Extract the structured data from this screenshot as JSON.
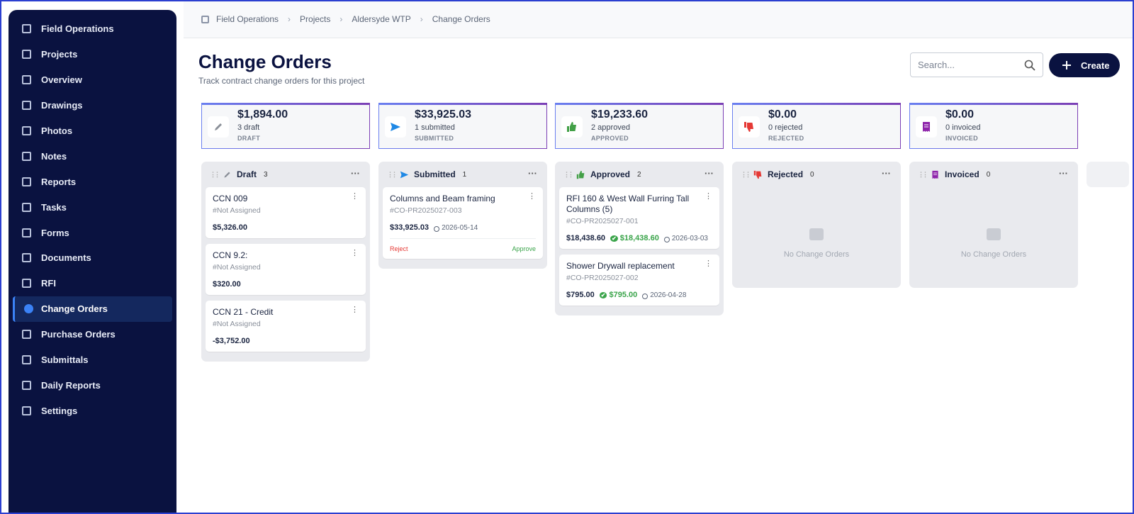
{
  "sidebar": {
    "items": [
      {
        "label": "Field Operations"
      },
      {
        "label": "Projects"
      },
      {
        "label": "Overview"
      },
      {
        "label": "Drawings"
      },
      {
        "label": "Photos"
      },
      {
        "label": "Notes"
      },
      {
        "label": "Reports"
      },
      {
        "label": "Tasks"
      },
      {
        "label": "Forms"
      },
      {
        "label": "Documents"
      },
      {
        "label": "RFI"
      },
      {
        "label": "Change Orders",
        "active": true
      },
      {
        "label": "Purchase Orders"
      },
      {
        "label": "Submittals"
      },
      {
        "label": "Daily Reports"
      },
      {
        "label": "Settings"
      }
    ]
  },
  "breadcrumb": [
    "Field Operations",
    "Projects",
    "Aldersyde WTP",
    "Change Orders"
  ],
  "header": {
    "title": "Change Orders",
    "subtitle": "Track contract change orders for this project",
    "search_placeholder": "Search...",
    "create_label": "Create"
  },
  "summary": [
    {
      "amount": "$1,894.00",
      "count": "3 draft",
      "label": "DRAFT"
    },
    {
      "amount": "$33,925.03",
      "count": "1 submitted",
      "label": "SUBMITTED"
    },
    {
      "amount": "$19,233.60",
      "count": "2 approved",
      "label": "APPROVED"
    },
    {
      "amount": "$0.00",
      "count": "0 rejected",
      "label": "REJECTED"
    },
    {
      "amount": "$0.00",
      "count": "0 invoiced",
      "label": "INVOICED"
    }
  ],
  "board": {
    "columns": [
      {
        "title": "Draft",
        "count": "3",
        "cards": [
          {
            "title": "CCN 009",
            "ref": "#Not Assigned",
            "amount": "$5,326.00"
          },
          {
            "title": "CCN 9.2:",
            "ref": "#Not Assigned",
            "amount": "$320.00"
          },
          {
            "title": "CCN 21 - Credit",
            "ref": "#Not Assigned",
            "amount": "-$3,752.00"
          }
        ]
      },
      {
        "title": "Submitted",
        "count": "1",
        "cards": [
          {
            "title": "Columns and Beam framing",
            "ref": "#CO-PR2025027-003",
            "amount": "$33,925.03",
            "date": "2026-05-14",
            "actions": [
              "Reject",
              "Approve"
            ]
          }
        ]
      },
      {
        "title": "Approved",
        "count": "2",
        "cards": [
          {
            "title": "RFI 160 & West Wall Furring Tall Columns (5)",
            "ref": "#CO-PR2025027-001",
            "amount": "$18,438.60",
            "approved_amount": "$18,438.60",
            "date": "2026-03-03"
          },
          {
            "title": "Shower Drywall replacement",
            "ref": "#CO-PR2025027-002",
            "amount": "$795.00",
            "approved_amount": "$795.00",
            "date": "2026-04-28"
          }
        ]
      },
      {
        "title": "Rejected",
        "count": "0",
        "cards": [],
        "empty_text": "No Change Orders"
      },
      {
        "title": "Invoiced",
        "count": "0",
        "cards": [],
        "empty_text": "No Change Orders"
      }
    ]
  }
}
